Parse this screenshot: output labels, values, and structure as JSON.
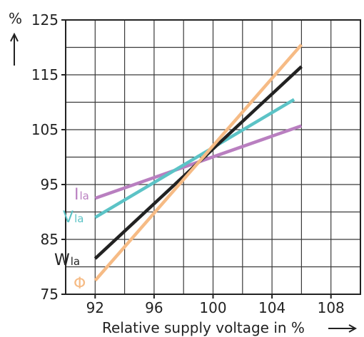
{
  "chart_data": {
    "type": "line",
    "xlabel": "Relative supply voltage in %",
    "ylabel": "%",
    "xlim": [
      90,
      110
    ],
    "ylim": [
      75,
      125
    ],
    "x_ticks": [
      "92",
      "96",
      "100",
      "104",
      "108"
    ],
    "y_ticks": [
      "75",
      "85",
      "95",
      "105",
      "115",
      "125"
    ],
    "x_tick_values": [
      92,
      96,
      100,
      104,
      108
    ],
    "y_tick_values": [
      75,
      85,
      95,
      105,
      115,
      125
    ],
    "grid": true,
    "series": [
      {
        "name": "I",
        "subscript": "la",
        "color": "#b97fc0",
        "x": [
          92,
          106
        ],
        "y": [
          92.5,
          105.7
        ]
      },
      {
        "name": "V",
        "subscript": "la",
        "color": "#5cc3c6",
        "x": [
          92,
          105.5
        ],
        "y": [
          89,
          110.5
        ]
      },
      {
        "name": "W",
        "subscript": "la",
        "color": "#222222",
        "x": [
          92,
          106
        ],
        "y": [
          81.5,
          116.5
        ]
      },
      {
        "name": "Φ",
        "subscript": "",
        "color": "#f6bb85",
        "x": [
          92,
          106
        ],
        "y": [
          77.5,
          120.5
        ]
      }
    ]
  }
}
